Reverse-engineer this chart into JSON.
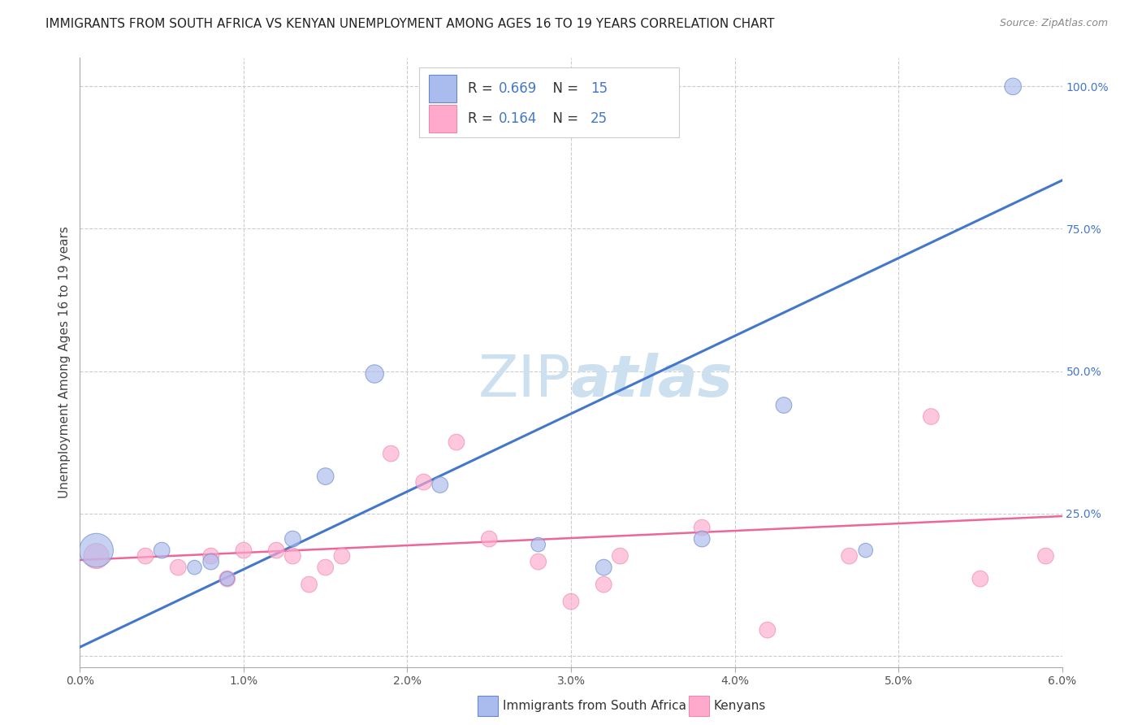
{
  "title": "IMMIGRANTS FROM SOUTH AFRICA VS KENYAN UNEMPLOYMENT AMONG AGES 16 TO 19 YEARS CORRELATION CHART",
  "source": "Source: ZipAtlas.com",
  "ylabel": "Unemployment Among Ages 16 to 19 years",
  "watermark": "ZIPatlas",
  "legend_blue_r": "0.669",
  "legend_blue_n": "15",
  "legend_pink_r": "0.164",
  "legend_pink_n": "25",
  "legend_blue_label": "Immigrants from South Africa",
  "legend_pink_label": "Kenyans",
  "xlim": [
    0.0,
    0.06
  ],
  "ylim": [
    -0.02,
    1.05
  ],
  "yticks_right": [
    0.0,
    0.25,
    0.5,
    0.75,
    1.0
  ],
  "ytick_labels_right": [
    "",
    "25.0%",
    "50.0%",
    "75.0%",
    "100.0%"
  ],
  "xtick_vals": [
    0.0,
    0.01,
    0.02,
    0.03,
    0.04,
    0.05,
    0.06
  ],
  "xtick_labels": [
    "0.0%",
    "1.0%",
    "2.0%",
    "3.0%",
    "4.0%",
    "5.0%",
    "6.0%"
  ],
  "blue_scatter_x": [
    0.001,
    0.005,
    0.007,
    0.008,
    0.009,
    0.013,
    0.015,
    0.018,
    0.022,
    0.028,
    0.032,
    0.038,
    0.043,
    0.048,
    0.057
  ],
  "blue_scatter_y": [
    0.185,
    0.185,
    0.155,
    0.165,
    0.135,
    0.205,
    0.315,
    0.495,
    0.3,
    0.195,
    0.155,
    0.205,
    0.44,
    0.185,
    1.0
  ],
  "blue_scatter_size": [
    900,
    200,
    160,
    200,
    160,
    200,
    220,
    260,
    200,
    160,
    200,
    200,
    200,
    160,
    220
  ],
  "pink_scatter_x": [
    0.001,
    0.004,
    0.006,
    0.008,
    0.009,
    0.01,
    0.012,
    0.013,
    0.014,
    0.015,
    0.016,
    0.019,
    0.021,
    0.023,
    0.025,
    0.028,
    0.03,
    0.032,
    0.033,
    0.038,
    0.042,
    0.047,
    0.052,
    0.055,
    0.059
  ],
  "pink_scatter_y": [
    0.175,
    0.175,
    0.155,
    0.175,
    0.135,
    0.185,
    0.185,
    0.175,
    0.125,
    0.155,
    0.175,
    0.355,
    0.305,
    0.375,
    0.205,
    0.165,
    0.095,
    0.125,
    0.175,
    0.225,
    0.045,
    0.175,
    0.42,
    0.135,
    0.175
  ],
  "pink_scatter_size": [
    500,
    200,
    200,
    200,
    200,
    200,
    200,
    200,
    200,
    200,
    200,
    200,
    200,
    200,
    200,
    200,
    200,
    200,
    200,
    200,
    200,
    200,
    200,
    200,
    200
  ],
  "blue_line_x": [
    0.0,
    0.06
  ],
  "blue_line_y": [
    0.015,
    0.835
  ],
  "pink_line_x": [
    0.0,
    0.06
  ],
  "pink_line_y": [
    0.168,
    0.245
  ],
  "blue_fill_color": "#aabbee",
  "blue_edge_color": "#6688cc",
  "pink_fill_color": "#ffaacc",
  "pink_edge_color": "#ee88aa",
  "blue_line_color": "#4477cc",
  "pink_line_color": "#ee6699",
  "grid_color": "#cccccc",
  "background_color": "#ffffff",
  "title_fontsize": 11,
  "axis_label_fontsize": 11,
  "tick_fontsize": 10,
  "watermark_color": "#cce0f0",
  "source_fontsize": 9,
  "accent_color": "#4477cc"
}
